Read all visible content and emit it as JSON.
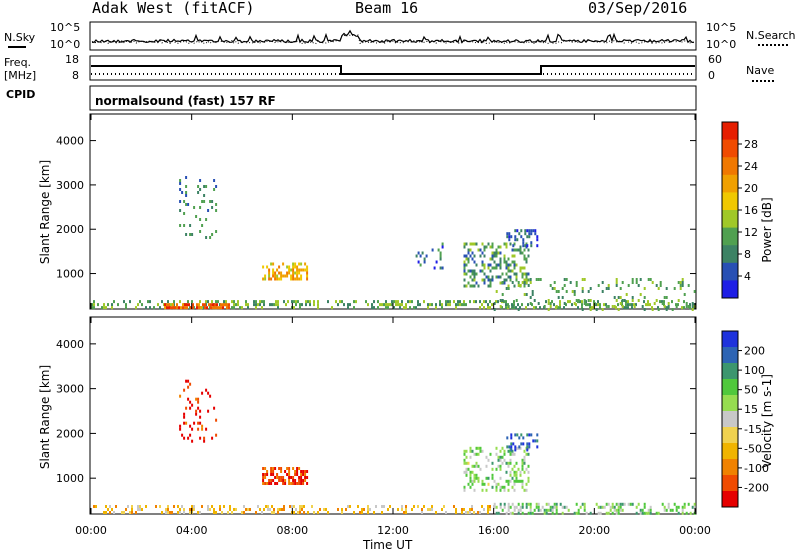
{
  "header": {
    "title": "Adak West (fitACF)",
    "beam": "Beam 16",
    "date": "03/Sep/2016"
  },
  "nsky_panel": {
    "left_label": "N.Sky",
    "right_label": "N.Search",
    "left_ticks": [
      "10^5",
      "10^0"
    ],
    "right_ticks": [
      "10^5",
      "10^0"
    ]
  },
  "freq_panel": {
    "left_label_1": "Freq.",
    "left_label_2": "[MHz]",
    "right_label": "Nave",
    "left_ticks": [
      "18",
      "8"
    ],
    "right_ticks": [
      "60",
      "0"
    ]
  },
  "cpid_panel": {
    "label": "CPID",
    "text": "normalsound (fast) 157 RF"
  },
  "colors": {
    "power_scale": [
      "#1e1ee6",
      "#2850b4",
      "#3c8264",
      "#50a050",
      "#a0c828",
      "#f0c800",
      "#f0a000",
      "#f07800",
      "#f04b00",
      "#e61e00"
    ],
    "velocity_scale": [
      "#e60000",
      "#f04b00",
      "#f08200",
      "#f0b400",
      "#f0d250",
      "#c8c8c8",
      "#96dc50",
      "#50c83c",
      "#3c966e",
      "#2d64b4",
      "#1e32dc"
    ]
  },
  "chart_data": [
    {
      "type": "heatmap",
      "name": "power",
      "ylabel": "Slant Range [km]",
      "yticks": [
        "4000",
        "3000",
        "2000",
        "1000"
      ],
      "ylim": [
        200,
        4600
      ],
      "colorbar_label": "Power [dB]",
      "colorbar_ticks": [
        "28",
        "24",
        "20",
        "16",
        "12",
        "8",
        "4"
      ],
      "xlim": [
        0,
        24
      ],
      "clusters": [
        {
          "t0": 0.0,
          "t1": 24.0,
          "r0": 200,
          "r1": 400,
          "level": 0.35,
          "density": 0.35
        },
        {
          "t0": 2.9,
          "t1": 5.5,
          "r0": 230,
          "r1": 330,
          "level": 0.8,
          "density": 0.8
        },
        {
          "t0": 3.5,
          "t1": 5.0,
          "r0": 1800,
          "r1": 3200,
          "level": 0.25,
          "density": 0.12
        },
        {
          "t0": 6.8,
          "t1": 8.6,
          "r0": 850,
          "r1": 1250,
          "level": 0.6,
          "density": 0.55
        },
        {
          "t0": 12.9,
          "t1": 14.0,
          "r0": 1100,
          "r1": 1700,
          "level": 0.2,
          "density": 0.15
        },
        {
          "t0": 14.8,
          "t1": 17.4,
          "r0": 700,
          "r1": 1700,
          "level": 0.3,
          "density": 0.35
        },
        {
          "t0": 16.5,
          "t1": 17.7,
          "r0": 1600,
          "r1": 2000,
          "level": 0.15,
          "density": 0.25
        },
        {
          "t0": 16.0,
          "t1": 24.0,
          "r0": 200,
          "r1": 900,
          "level": 0.35,
          "density": 0.12
        }
      ]
    },
    {
      "type": "heatmap",
      "name": "velocity",
      "ylabel": "Slant Range [km]",
      "yticks": [
        "4000",
        "3000",
        "2000",
        "1000"
      ],
      "ylim": [
        200,
        4600
      ],
      "colorbar_label": "Velocity [m s-1]",
      "colorbar_ticks": [
        "200",
        "100",
        "50",
        "15",
        "-15",
        "-50",
        "-100",
        "-200"
      ],
      "xlim": [
        0,
        24
      ],
      "xlabel": "Time UT",
      "xticks": [
        "00:00",
        "04:00",
        "08:00",
        "12:00",
        "16:00",
        "20:00",
        "00:00"
      ],
      "clusters": [
        {
          "t0": 0.0,
          "t1": 16.0,
          "r0": 200,
          "r1": 400,
          "level": 0.35,
          "density": 0.3
        },
        {
          "t0": 16.0,
          "t1": 24.0,
          "r0": 200,
          "r1": 450,
          "level": 0.62,
          "density": 0.35
        },
        {
          "t0": 3.5,
          "t1": 5.0,
          "r0": 1800,
          "r1": 3200,
          "level": 0.08,
          "density": 0.12
        },
        {
          "t0": 6.8,
          "t1": 8.6,
          "r0": 850,
          "r1": 1250,
          "level": 0.12,
          "density": 0.55
        },
        {
          "t0": 14.8,
          "t1": 17.4,
          "r0": 700,
          "r1": 1700,
          "level": 0.6,
          "density": 0.35
        },
        {
          "t0": 16.5,
          "t1": 17.7,
          "r0": 1600,
          "r1": 2000,
          "level": 0.9,
          "density": 0.25
        }
      ]
    }
  ]
}
